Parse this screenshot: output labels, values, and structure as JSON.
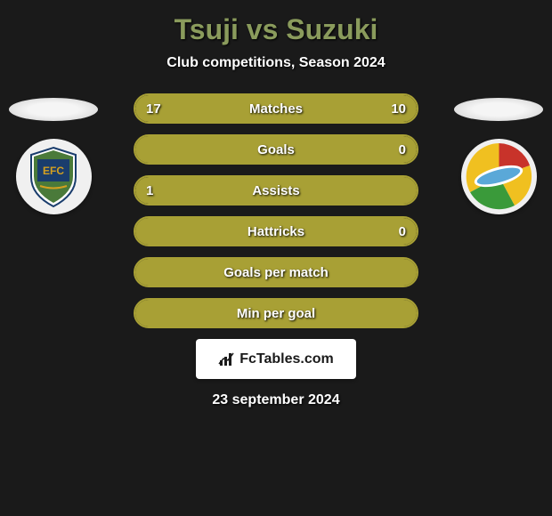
{
  "header": {
    "title": "Tsuji vs Suzuki",
    "subtitle": "Club competitions, Season 2024"
  },
  "stats": [
    {
      "label": "Matches",
      "left_value": "17",
      "right_value": "10",
      "left_pct": 63,
      "right_pct": 37,
      "show_left": true,
      "show_right": true
    },
    {
      "label": "Goals",
      "left_value": "",
      "right_value": "0",
      "left_pct": 0,
      "right_pct": 100,
      "show_left": false,
      "show_right": true
    },
    {
      "label": "Assists",
      "left_value": "1",
      "right_value": "",
      "left_pct": 100,
      "right_pct": 0,
      "show_left": true,
      "show_right": false
    },
    {
      "label": "Hattricks",
      "left_value": "",
      "right_value": "0",
      "left_pct": 0,
      "right_pct": 100,
      "show_left": false,
      "show_right": true
    },
    {
      "label": "Goals per match",
      "left_value": "",
      "right_value": "",
      "left_pct": 100,
      "right_pct": 0,
      "show_left": false,
      "show_right": false,
      "full": true
    },
    {
      "label": "Min per goal",
      "left_value": "",
      "right_value": "",
      "left_pct": 100,
      "right_pct": 0,
      "show_left": false,
      "show_right": false,
      "full": true
    }
  ],
  "brand": {
    "text": "FcTables.com"
  },
  "date": "23 september 2024",
  "colors": {
    "accent": "#a8a035",
    "title": "#8a9b5c",
    "bg": "#1a1a1a",
    "text": "#ffffff"
  },
  "teams": {
    "left": {
      "name": "Ehime FC",
      "badge_colors": [
        "#1a3d6d",
        "#4a7a3a",
        "#d4a020",
        "#ffffff"
      ]
    },
    "right": {
      "name": "JEF United",
      "badge_colors": [
        "#c8332a",
        "#f0c020",
        "#3a9a3a",
        "#ffffff"
      ]
    }
  }
}
